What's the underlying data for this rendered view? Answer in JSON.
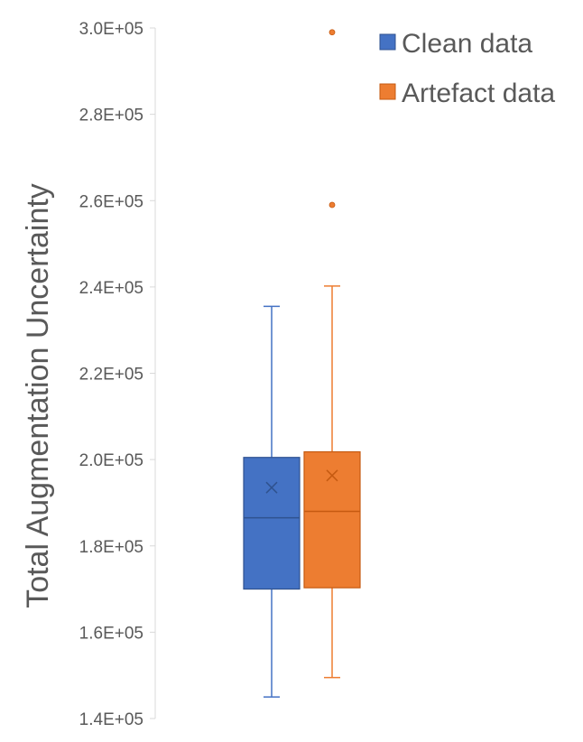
{
  "chart_data": {
    "type": "box",
    "title": "",
    "xlabel": "",
    "ylabel": "Total Augmentation Uncertainty",
    "ylim": [
      140000,
      300000
    ],
    "y_ticks": [
      140000,
      160000,
      180000,
      200000,
      220000,
      240000,
      260000,
      280000,
      300000
    ],
    "y_tick_labels": [
      "1.4E+05",
      "1.6E+05",
      "1.8E+05",
      "2.0E+05",
      "2.2E+05",
      "2.4E+05",
      "2.6E+05",
      "2.8E+05",
      "3.0E+05"
    ],
    "grid": false,
    "legend_position": "top-right",
    "series": [
      {
        "name": "Clean data",
        "color": "#4472C4",
        "whisker_low": 145000,
        "q1": 170000,
        "median": 186500,
        "q3": 200500,
        "whisker_high": 235500,
        "mean": 193500,
        "outliers": []
      },
      {
        "name": "Artefact data",
        "color": "#ED7D31",
        "whisker_low": 149500,
        "q1": 170300,
        "median": 188000,
        "q3": 201800,
        "whisker_high": 240200,
        "mean": 196300,
        "outliers": [
          259000,
          299000
        ]
      }
    ]
  }
}
